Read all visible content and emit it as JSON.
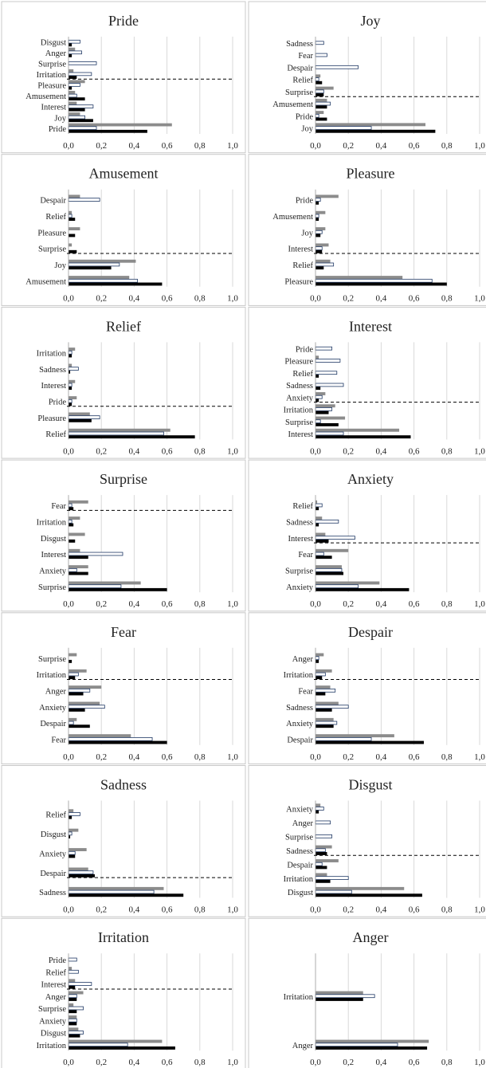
{
  "chart_data": [
    {
      "type": "bar",
      "title": "Pride",
      "xlim": [
        0,
        1
      ],
      "xticks": [
        "0,0",
        "0,2",
        "0,4",
        "0,6",
        "0,8",
        "1,0"
      ],
      "categories": [
        "Disgust",
        "Anger",
        "Surprise",
        "Irritation",
        "Pleasure",
        "Amusement",
        "Interest",
        "Joy",
        "Pride"
      ],
      "series": [
        {
          "name": "gray",
          "values": [
            0.0,
            0.04,
            0.0,
            0.03,
            0.1,
            0.04,
            0.05,
            0.07,
            0.63
          ]
        },
        {
          "name": "white",
          "values": [
            0.07,
            0.08,
            0.17,
            0.14,
            0.07,
            0.05,
            0.15,
            0.1,
            0.17
          ]
        },
        {
          "name": "black",
          "values": [
            0.02,
            0.02,
            0.0,
            0.05,
            0.02,
            0.1,
            0.1,
            0.15,
            0.48
          ]
        }
      ],
      "threshold_after": 3
    },
    {
      "type": "bar",
      "title": "Joy",
      "xlim": [
        0,
        1
      ],
      "xticks": [
        "0,0",
        "0,2",
        "0,4",
        "0,6",
        "0,8",
        "1,0"
      ],
      "categories": [
        "Sadness",
        "Fear",
        "Despair",
        "Relief",
        "Surprise",
        "Amusement",
        "Pride",
        "Joy"
      ],
      "series": [
        {
          "name": "gray",
          "values": [
            0.0,
            0.0,
            0.0,
            0.03,
            0.11,
            0.07,
            0.05,
            0.67
          ]
        },
        {
          "name": "white",
          "values": [
            0.05,
            0.07,
            0.26,
            0.02,
            0.05,
            0.09,
            0.02,
            0.34
          ]
        },
        {
          "name": "black",
          "values": [
            0.0,
            0.0,
            0.0,
            0.04,
            0.05,
            0.07,
            0.07,
            0.73
          ]
        }
      ],
      "threshold_after": 4
    },
    {
      "type": "bar",
      "title": "Amusement",
      "xlim": [
        0,
        1
      ],
      "xticks": [
        "0,0",
        "0,2",
        "0,4",
        "0,6",
        "0,8",
        "1,0"
      ],
      "categories": [
        "Despair",
        "Relief",
        "Pleasure",
        "Surprise",
        "Joy",
        "Amusement"
      ],
      "series": [
        {
          "name": "gray",
          "values": [
            0.07,
            0.02,
            0.07,
            0.02,
            0.41,
            0.37
          ]
        },
        {
          "name": "white",
          "values": [
            0.19,
            0.02,
            0.0,
            0.0,
            0.31,
            0.42
          ]
        },
        {
          "name": "black",
          "values": [
            0.0,
            0.04,
            0.04,
            0.05,
            0.26,
            0.57
          ]
        }
      ],
      "threshold_after": 3
    },
    {
      "type": "bar",
      "title": "Pleasure",
      "xlim": [
        0,
        1
      ],
      "xticks": [
        "0,0",
        "0,2",
        "0,4",
        "0,6",
        "0,8",
        "1,0"
      ],
      "categories": [
        "Pride",
        "Amusement",
        "Joy",
        "Interest",
        "Relief",
        "Pleasure"
      ],
      "series": [
        {
          "name": "gray",
          "values": [
            0.14,
            0.06,
            0.06,
            0.08,
            0.09,
            0.53
          ]
        },
        {
          "name": "white",
          "values": [
            0.03,
            0.02,
            0.04,
            0.04,
            0.11,
            0.71
          ]
        },
        {
          "name": "black",
          "values": [
            0.02,
            0.02,
            0.03,
            0.04,
            0.05,
            0.8
          ]
        }
      ],
      "threshold_after": 3
    },
    {
      "type": "bar",
      "title": "Relief",
      "xlim": [
        0,
        1
      ],
      "xticks": [
        "0,0",
        "0,2",
        "0,4",
        "0,6",
        "0,8",
        "1,0"
      ],
      "categories": [
        "Irritation",
        "Sadness",
        "Interest",
        "Pride",
        "Pleasure",
        "Relief"
      ],
      "series": [
        {
          "name": "gray",
          "values": [
            0.04,
            0.02,
            0.04,
            0.05,
            0.13,
            0.62
          ]
        },
        {
          "name": "white",
          "values": [
            0.02,
            0.06,
            0.02,
            0.02,
            0.19,
            0.58
          ]
        },
        {
          "name": "black",
          "values": [
            0.02,
            0.01,
            0.02,
            0.02,
            0.14,
            0.77
          ]
        }
      ],
      "threshold_after": 3
    },
    {
      "type": "bar",
      "title": "Interest",
      "xlim": [
        0,
        1
      ],
      "xticks": [
        "0,0",
        "0,2",
        "0,4",
        "0,6",
        "0,8",
        "1,0"
      ],
      "categories": [
        "Pride",
        "Pleasure",
        "Relief",
        "Sadness",
        "Anxiety",
        "Irritation",
        "Surprise",
        "Interest"
      ],
      "series": [
        {
          "name": "gray",
          "values": [
            0.0,
            0.02,
            0.0,
            0.0,
            0.06,
            0.12,
            0.18,
            0.51
          ]
        },
        {
          "name": "white",
          "values": [
            0.1,
            0.15,
            0.13,
            0.17,
            0.04,
            0.1,
            0.03,
            0.17
          ]
        },
        {
          "name": "black",
          "values": [
            0.0,
            0.0,
            0.02,
            0.03,
            0.02,
            0.08,
            0.14,
            0.58
          ]
        }
      ],
      "threshold_after": 4
    },
    {
      "type": "bar",
      "title": "Surprise",
      "xlim": [
        0,
        1
      ],
      "xticks": [
        "0,0",
        "0,2",
        "0,4",
        "0,6",
        "0,8",
        "1,0"
      ],
      "categories": [
        "Fear",
        "Irritation",
        "Disgust",
        "Interest",
        "Anxiety",
        "Surprise"
      ],
      "series": [
        {
          "name": "gray",
          "values": [
            0.12,
            0.07,
            0.1,
            0.07,
            0.12,
            0.44
          ]
        },
        {
          "name": "white",
          "values": [
            0.02,
            0.02,
            0.0,
            0.33,
            0.05,
            0.32
          ]
        },
        {
          "name": "black",
          "values": [
            0.03,
            0.03,
            0.04,
            0.12,
            0.12,
            0.6
          ]
        }
      ],
      "threshold_after": 0
    },
    {
      "type": "bar",
      "title": "Anxiety",
      "xlim": [
        0,
        1
      ],
      "xticks": [
        "0,0",
        "0,2",
        "0,4",
        "0,6",
        "0,8",
        "1,0"
      ],
      "categories": [
        "Relief",
        "Sadness",
        "Interest",
        "Fear",
        "Surprise",
        "Anxiety"
      ],
      "series": [
        {
          "name": "gray",
          "values": [
            0.01,
            0.04,
            0.06,
            0.2,
            0.16,
            0.39
          ]
        },
        {
          "name": "white",
          "values": [
            0.04,
            0.14,
            0.24,
            0.05,
            0.16,
            0.26
          ]
        },
        {
          "name": "black",
          "values": [
            0.02,
            0.02,
            0.08,
            0.1,
            0.17,
            0.57
          ]
        }
      ],
      "threshold_after": 2
    },
    {
      "type": "bar",
      "title": "Fear",
      "xlim": [
        0,
        1
      ],
      "xticks": [
        "0,0",
        "0,2",
        "0,4",
        "0,6",
        "0,8",
        "1,0"
      ],
      "categories": [
        "Surprise",
        "Irritation",
        "Anger",
        "Anxiety",
        "Despair",
        "Fear"
      ],
      "series": [
        {
          "name": "gray",
          "values": [
            0.05,
            0.11,
            0.2,
            0.19,
            0.05,
            0.38
          ]
        },
        {
          "name": "white",
          "values": [
            0.0,
            0.06,
            0.13,
            0.22,
            0.03,
            0.51
          ]
        },
        {
          "name": "black",
          "values": [
            0.02,
            0.04,
            0.09,
            0.1,
            0.13,
            0.6
          ]
        }
      ],
      "threshold_after": 1
    },
    {
      "type": "bar",
      "title": "Despair",
      "xlim": [
        0,
        1
      ],
      "xticks": [
        "0,0",
        "0,2",
        "0,4",
        "0,6",
        "0,8",
        "1,0"
      ],
      "categories": [
        "Anger",
        "Irritation",
        "Fear",
        "Sadness",
        "Anxiety",
        "Despair"
      ],
      "series": [
        {
          "name": "gray",
          "values": [
            0.05,
            0.1,
            0.09,
            0.14,
            0.11,
            0.48
          ]
        },
        {
          "name": "white",
          "values": [
            0.02,
            0.06,
            0.12,
            0.2,
            0.13,
            0.34
          ]
        },
        {
          "name": "black",
          "values": [
            0.02,
            0.04,
            0.06,
            0.1,
            0.11,
            0.66
          ]
        }
      ],
      "threshold_after": 1
    },
    {
      "type": "bar",
      "title": "Sadness",
      "xlim": [
        0,
        1
      ],
      "xticks": [
        "0,0",
        "0,2",
        "0,4",
        "0,6",
        "0,8",
        "1,0"
      ],
      "categories": [
        "Relief",
        "Disgust",
        "Anxiety",
        "Despair",
        "Sadness"
      ],
      "series": [
        {
          "name": "gray",
          "values": [
            0.03,
            0.06,
            0.11,
            0.12,
            0.58
          ]
        },
        {
          "name": "white",
          "values": [
            0.07,
            0.02,
            0.04,
            0.15,
            0.52
          ]
        },
        {
          "name": "black",
          "values": [
            0.02,
            0.01,
            0.04,
            0.16,
            0.7
          ]
        }
      ],
      "threshold_after": 3
    },
    {
      "type": "bar",
      "title": "Disgust",
      "xlim": [
        0,
        1
      ],
      "xticks": [
        "0,0",
        "0,2",
        "0,4",
        "0,6",
        "0,8",
        "1,0"
      ],
      "categories": [
        "Anxiety",
        "Anger",
        "Surprise",
        "Sadness",
        "Despair",
        "Irritation",
        "Disgust"
      ],
      "series": [
        {
          "name": "gray",
          "values": [
            0.03,
            0.0,
            0.0,
            0.1,
            0.14,
            0.07,
            0.54
          ]
        },
        {
          "name": "white",
          "values": [
            0.05,
            0.09,
            0.1,
            0.06,
            0.04,
            0.2,
            0.22
          ]
        },
        {
          "name": "black",
          "values": [
            0.02,
            0.0,
            0.0,
            0.07,
            0.07,
            0.09,
            0.65
          ]
        }
      ],
      "threshold_after": 3
    },
    {
      "type": "bar",
      "title": "Irritation",
      "xlim": [
        0,
        1
      ],
      "xticks": [
        "0,0",
        "0,2",
        "0,4",
        "0,6",
        "0,8",
        "1,0"
      ],
      "categories": [
        "Pride",
        "Relief",
        "Interest",
        "Anger",
        "Surprise",
        "Anxiety",
        "Disgust",
        "Irritation"
      ],
      "series": [
        {
          "name": "gray",
          "values": [
            0.0,
            0.02,
            0.04,
            0.09,
            0.03,
            0.05,
            0.06,
            0.57
          ]
        },
        {
          "name": "white",
          "values": [
            0.05,
            0.06,
            0.14,
            0.05,
            0.09,
            0.05,
            0.09,
            0.36
          ]
        },
        {
          "name": "black",
          "values": [
            0.0,
            0.0,
            0.04,
            0.05,
            0.05,
            0.05,
            0.07,
            0.65
          ]
        }
      ],
      "threshold_after": 2
    },
    {
      "type": "bar",
      "title": "Anger",
      "xlim": [
        0,
        1
      ],
      "xticks": [
        "0,0",
        "0,2",
        "0,4",
        "0,6",
        "0,8",
        "1,0"
      ],
      "categories": [
        "Irritation",
        "Anger"
      ],
      "series": [
        {
          "name": "gray",
          "values": [
            0.29,
            0.69
          ]
        },
        {
          "name": "white",
          "values": [
            0.36,
            0.5
          ]
        },
        {
          "name": "black",
          "values": [
            0.29,
            0.68
          ]
        }
      ],
      "threshold_after": -1
    }
  ],
  "colors": {
    "gray": "#8c8c8c",
    "white_fill": "#ffffff",
    "white_stroke": "#1f3864",
    "black": "#000000",
    "grid": "#d9d9d9",
    "panel_border": "#c8c8c8",
    "text": "#222222"
  }
}
